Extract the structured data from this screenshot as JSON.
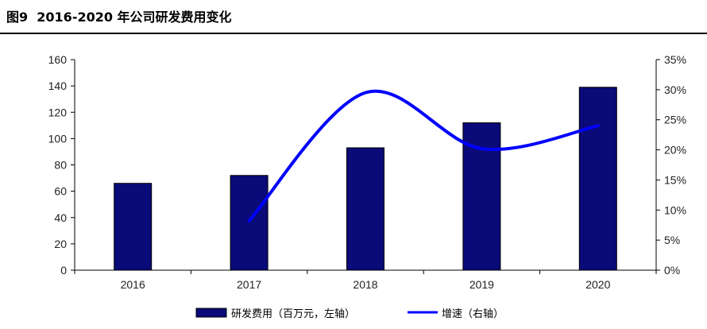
{
  "figure": {
    "label": "图9",
    "title": "2016-2020 年公司研发费用变化"
  },
  "chart_data": {
    "type": "bar+line",
    "categories": [
      "2016",
      "2017",
      "2018",
      "2019",
      "2020"
    ],
    "series": [
      {
        "name": "研发费用（百万元，左轴）",
        "type": "bar",
        "axis": "left",
        "values": [
          66,
          72,
          93,
          112,
          139
        ]
      },
      {
        "name": "增速（右轴）",
        "type": "line",
        "axis": "right",
        "smooth": true,
        "values": [
          null,
          8.2,
          29.5,
          20.2,
          24.0
        ]
      }
    ],
    "y_left": {
      "min": 0,
      "max": 160,
      "step": 20,
      "ticks": [
        "0",
        "20",
        "40",
        "60",
        "80",
        "100",
        "120",
        "140",
        "160"
      ]
    },
    "y_right": {
      "min": 0,
      "max": 35,
      "step": 5,
      "ticks": [
        "0%",
        "5%",
        "10%",
        "15%",
        "20%",
        "25%",
        "30%",
        "35%"
      ]
    },
    "grid": false,
    "legend_position": "bottom",
    "colors": {
      "bar": "#0a0a78",
      "line": "#0000ff"
    }
  }
}
